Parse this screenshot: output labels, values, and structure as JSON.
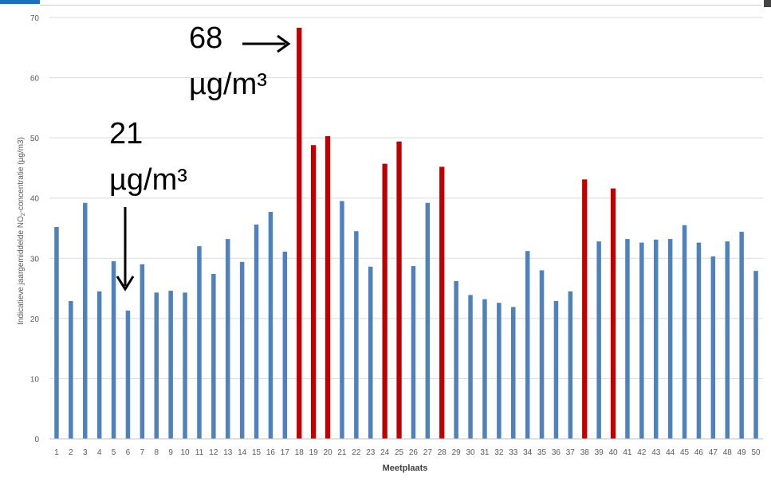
{
  "chart_data": {
    "type": "bar",
    "title": "",
    "xlabel": "Meetplaats",
    "ylabel_main": "Indicatieve jaargemiddelde NO",
    "ylabel_sub": "2",
    "ylabel_tail": "-concentratie (µg/m3)",
    "ylim": [
      0,
      70
    ],
    "yticks": [
      0,
      10,
      20,
      30,
      40,
      50,
      60,
      70
    ],
    "grid": true,
    "categories": [
      "1",
      "2",
      "3",
      "4",
      "5",
      "6",
      "7",
      "8",
      "9",
      "10",
      "11",
      "12",
      "13",
      "14",
      "15",
      "16",
      "17",
      "18",
      "19",
      "20",
      "21",
      "22",
      "23",
      "24",
      "25",
      "26",
      "27",
      "28",
      "29",
      "30",
      "31",
      "32",
      "33",
      "34",
      "35",
      "36",
      "37",
      "38",
      "39",
      "40",
      "41",
      "42",
      "43",
      "44",
      "45",
      "46",
      "47",
      "48",
      "49",
      "50"
    ],
    "values": [
      35.2,
      22.9,
      39.2,
      24.5,
      29.5,
      21.3,
      29.0,
      24.3,
      24.6,
      24.3,
      32.0,
      27.4,
      33.2,
      29.4,
      35.6,
      37.7,
      31.1,
      68.3,
      48.8,
      50.3,
      39.5,
      34.5,
      28.6,
      45.7,
      49.4,
      28.7,
      39.2,
      45.2,
      26.2,
      23.9,
      23.2,
      22.6,
      21.9,
      31.2,
      28.0,
      22.9,
      24.5,
      43.1,
      32.8,
      41.6,
      33.2,
      32.6,
      33.1,
      33.2,
      35.5,
      32.6,
      30.3,
      32.8,
      34.4,
      27.9
    ],
    "highlight": [
      18,
      19,
      20,
      24,
      25,
      28,
      38,
      40
    ],
    "colors": {
      "normal": "#4f81bd",
      "highlight": "#c00000",
      "grid": "#d9d9d9",
      "axis_text": "#595959"
    },
    "annotations": [
      {
        "line1": "68",
        "line2": "µg/m³",
        "target": "18",
        "arrow": "right"
      },
      {
        "line1": "21",
        "line2": "µg/m³",
        "target": "6",
        "arrow": "down"
      }
    ]
  },
  "decor": {
    "tab_color": "#1f6fbf"
  }
}
